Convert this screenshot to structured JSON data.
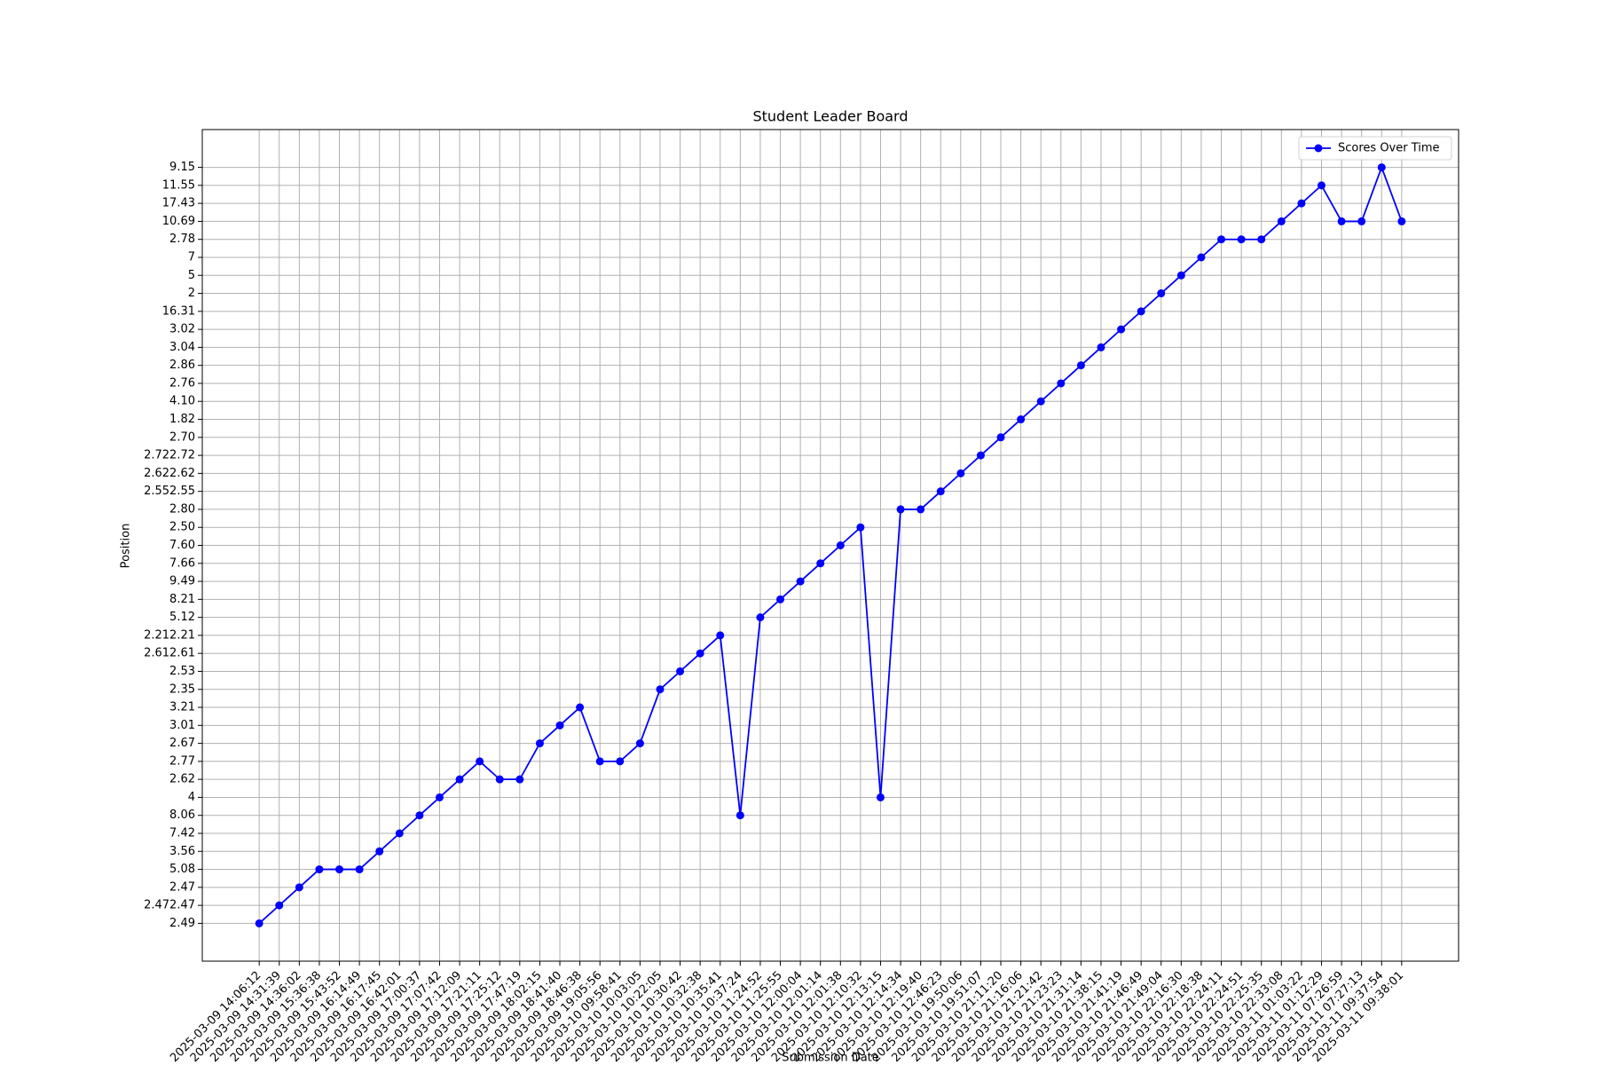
{
  "chart_data": {
    "type": "line",
    "title": "Student Leader Board",
    "x_label": "Submission Date",
    "y_label": "Position",
    "categories": [
      "2025-03-09 14:06:12",
      "2025-03-09 14:31:39",
      "2025-03-09 14:36:02",
      "2025-03-09 15:36:38",
      "2025-03-09 15:43:52",
      "2025-03-09 16:14:49",
      "2025-03-09 16:17:45",
      "2025-03-09 16:42:01",
      "2025-03-09 17:00:37",
      "2025-03-09 17:07:42",
      "2025-03-09 17:12:09",
      "2025-03-09 17:21:11",
      "2025-03-09 17:25:12",
      "2025-03-09 17:47:19",
      "2025-03-09 18:02:15",
      "2025-03-09 18:41:40",
      "2025-03-09 18:46:38",
      "2025-03-09 19:05:56",
      "2025-03-10 09:58:41",
      "2025-03-10 10:03:05",
      "2025-03-10 10:22:05",
      "2025-03-10 10:30:42",
      "2025-03-10 10:32:38",
      "2025-03-10 10:35:41",
      "2025-03-10 10:37:24",
      "2025-03-10 11:24:52",
      "2025-03-10 11:25:55",
      "2025-03-10 12:00:04",
      "2025-03-10 12:01:14",
      "2025-03-10 12:01:38",
      "2025-03-10 12:10:32",
      "2025-03-10 12:13:15",
      "2025-03-10 12:14:34",
      "2025-03-10 12:19:40",
      "2025-03-10 12:46:23",
      "2025-03-10 19:50:06",
      "2025-03-10 19:51:07",
      "2025-03-10 21:11:20",
      "2025-03-10 21:16:06",
      "2025-03-10 21:21:42",
      "2025-03-10 21:23:23",
      "2025-03-10 21:31:14",
      "2025-03-10 21:38:15",
      "2025-03-10 21:41:19",
      "2025-03-10 21:46:49",
      "2025-03-10 21:49:04",
      "2025-03-10 22:16:30",
      "2025-03-10 22:18:38",
      "2025-03-10 22:24:11",
      "2025-03-10 22:24:51",
      "2025-03-10 22:25:35",
      "2025-03-10 22:33:08",
      "2025-03-11 01:03:22",
      "2025-03-11 01:12:29",
      "2025-03-11 07:26:59",
      "2025-03-11 07:27:13",
      "2025-03-11 09:37:54",
      "2025-03-11 09:38:01"
    ],
    "y_categories": [
      "2.49",
      "2.472.47",
      "2.47",
      "5.08",
      "3.56",
      "7.42",
      "8.06",
      "4",
      "2.62",
      "2.77",
      "2.67",
      "3.01",
      "3.21",
      "2.35",
      "2.53",
      "2.612.61",
      "2.212.21",
      "5.12",
      "8.21",
      "9.49",
      "7.66",
      "7.60",
      "2.50",
      "2.80",
      "2.552.55",
      "2.622.62",
      "2.722.72",
      "2.70",
      "1.82",
      "4.10",
      "2.76",
      "2.86",
      "3.04",
      "3.02",
      "16.31",
      "2",
      "5",
      "7",
      "2.78",
      "10.69",
      "17.43",
      "11.55",
      "9.15"
    ],
    "series": [
      {
        "name": "Scores Over Time",
        "color": "#0000ff",
        "values": [
          "2.49",
          "2.472.47",
          "2.47",
          "5.08",
          "5.08",
          "5.08",
          "3.56",
          "7.42",
          "8.06",
          "4",
          "2.62",
          "2.77",
          "2.62",
          "2.62",
          "2.67",
          "3.01",
          "3.21",
          "2.77",
          "2.77",
          "2.67",
          "2.35",
          "2.53",
          "2.612.61",
          "2.212.21",
          "8.06",
          "5.12",
          "8.21",
          "9.49",
          "7.66",
          "7.60",
          "2.50",
          "4",
          "2.80",
          "2.80",
          "2.552.55",
          "2.622.62",
          "2.722.72",
          "2.70",
          "1.82",
          "4.10",
          "2.76",
          "2.86",
          "3.04",
          "3.02",
          "16.31",
          "2",
          "5",
          "7",
          "2.78",
          "2.78",
          "2.78",
          "10.69",
          "17.43",
          "11.55",
          "10.69",
          "10.69",
          "9.15",
          "10.69"
        ]
      }
    ],
    "grid": true,
    "legend": "upper right"
  }
}
